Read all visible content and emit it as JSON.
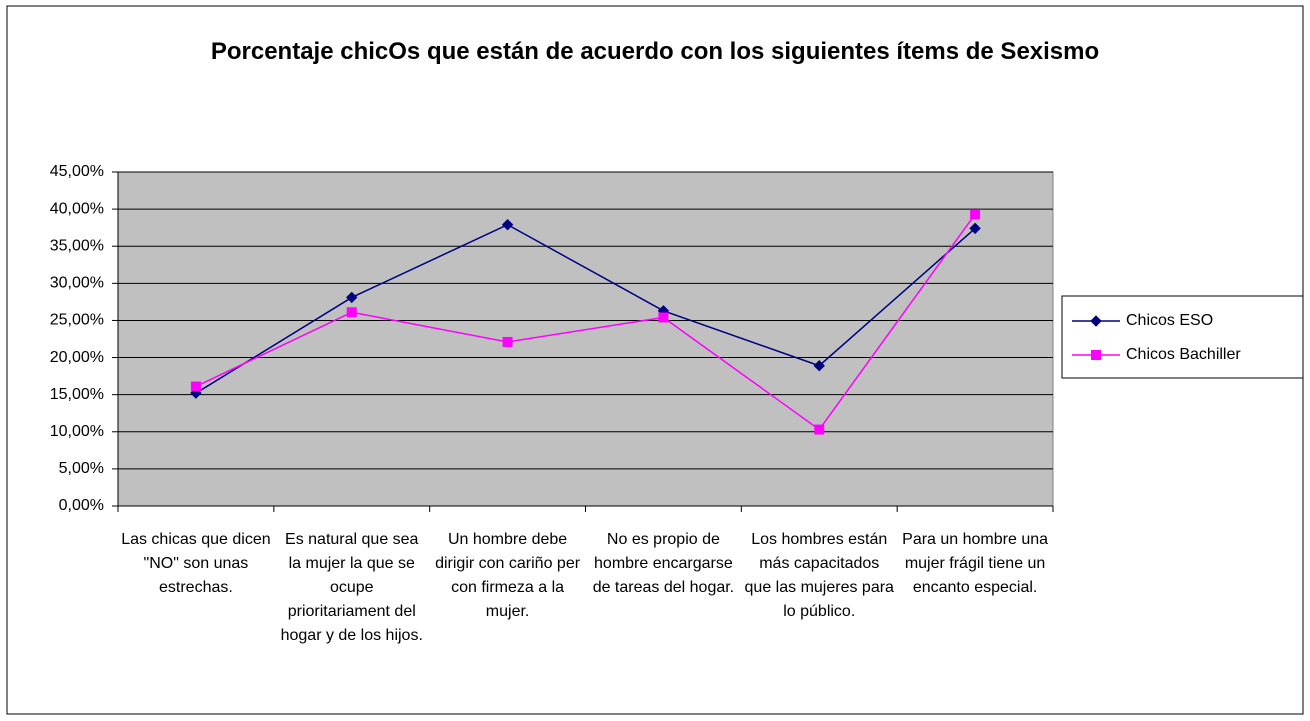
{
  "chart_data": {
    "type": "line",
    "title": "Porcentaje chicOs que están de acuerdo con los siguientes ítems de Sexismo",
    "categories": [
      "Las chicas que dicen \"NO\" son unas estrechas.",
      "Es natural que sea la mujer la que se ocupe prioritariament del hogar y de los hijos.",
      "Un hombre debe dirigir con cariño per con firmeza a la mujer.",
      "No es propio de hombre encargarse de tareas del hogar.",
      "Los hombres están más capacitados que las mujeres para lo público.",
      "Para un hombre una mujer frágil tiene un encanto especial."
    ],
    "series": [
      {
        "name": "Chicos ESO",
        "color": "#000080",
        "marker": "diamond",
        "values": [
          15.2,
          28.1,
          37.9,
          26.3,
          18.9,
          37.4
        ]
      },
      {
        "name": "Chicos Bachiller",
        "color": "#ff00ff",
        "marker": "square",
        "values": [
          16.1,
          26.1,
          22.1,
          25.4,
          10.3,
          39.3
        ]
      }
    ],
    "ylim": [
      0,
      45
    ],
    "yticks": [
      {
        "value": 0,
        "label": "0,00%"
      },
      {
        "value": 5,
        "label": "5,00%"
      },
      {
        "value": 10,
        "label": "10,00%"
      },
      {
        "value": 15,
        "label": "15,00%"
      },
      {
        "value": 20,
        "label": "20,00%"
      },
      {
        "value": 25,
        "label": "25,00%"
      },
      {
        "value": 30,
        "label": "30,00%"
      },
      {
        "value": 35,
        "label": "35,00%"
      },
      {
        "value": 40,
        "label": "40,00%"
      },
      {
        "value": 45,
        "label": "45,00%"
      }
    ],
    "grid": true,
    "legend": "right",
    "plot_background": "#c0c0c0"
  }
}
